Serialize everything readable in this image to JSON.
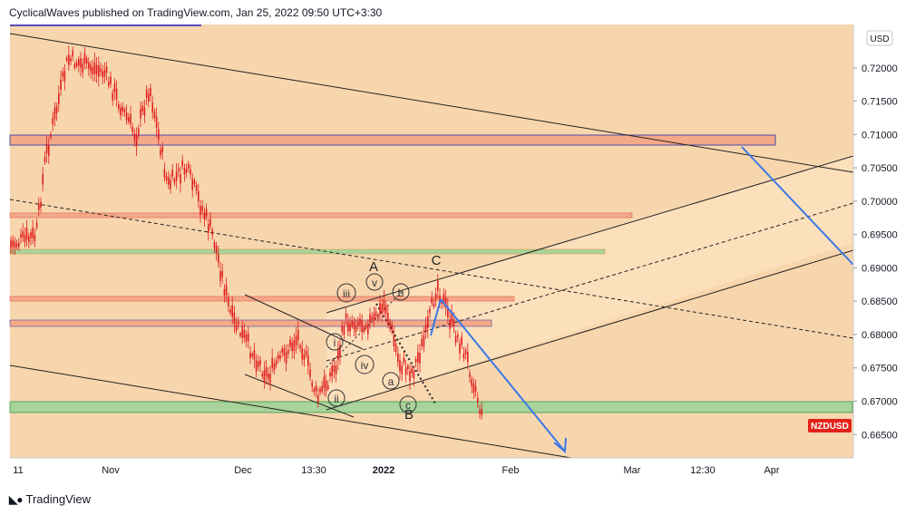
{
  "header": {
    "published": "CyclicalWaves published on TradingView.com, Jan 25, 2022 09:50 UTC+3:30"
  },
  "footer": {
    "brand": "TradingView",
    "logo_icon": "tradingview-logo-icon"
  },
  "chart_data": {
    "type": "candlestick",
    "symbol": "NZDUSD",
    "currency": "USD",
    "colors": {
      "candles": "#e01e1e",
      "background": "#f8d6ad",
      "channel_fill": "#fde0bd",
      "resistance_zone": "#f4a988",
      "support_zone": "#a8d39a",
      "projection_arrow": "#3a78e8",
      "symbol_badge": "#e3231b"
    },
    "y_axis": {
      "ticks": [
        "0.72000",
        "0.71500",
        "0.71000",
        "0.70500",
        "0.70000",
        "0.69500",
        "0.69000",
        "0.68500",
        "0.68000",
        "0.67500",
        "0.67000",
        "0.66500"
      ],
      "range": [
        0.6615,
        0.7265
      ]
    },
    "x_axis": {
      "labels": [
        "11",
        "Nov",
        "Dec",
        "13:30",
        "2022",
        "Feb",
        "Mar",
        "12:30",
        "Apr"
      ]
    },
    "last_price_label": "NZDUSD",
    "wave_labels": [
      "A",
      "C",
      "B",
      "i",
      "ii",
      "iii",
      "iv",
      "v",
      "a",
      "b",
      "c"
    ],
    "zones": [
      {
        "name": "resistance-zone-top",
        "low": 0.7078,
        "high": 0.7093
      },
      {
        "name": "resistance-zone-0.697",
        "low": 0.6973,
        "high": 0.698
      },
      {
        "name": "support-zone-0.692",
        "low": 0.6922,
        "high": 0.6928
      },
      {
        "name": "resistance-zone-0.686",
        "low": 0.6854,
        "high": 0.686
      },
      {
        "name": "resistance-zone-0.682",
        "low": 0.6814,
        "high": 0.6822
      },
      {
        "name": "support-zone-bottom",
        "low": 0.6694,
        "high": 0.6708
      }
    ]
  }
}
